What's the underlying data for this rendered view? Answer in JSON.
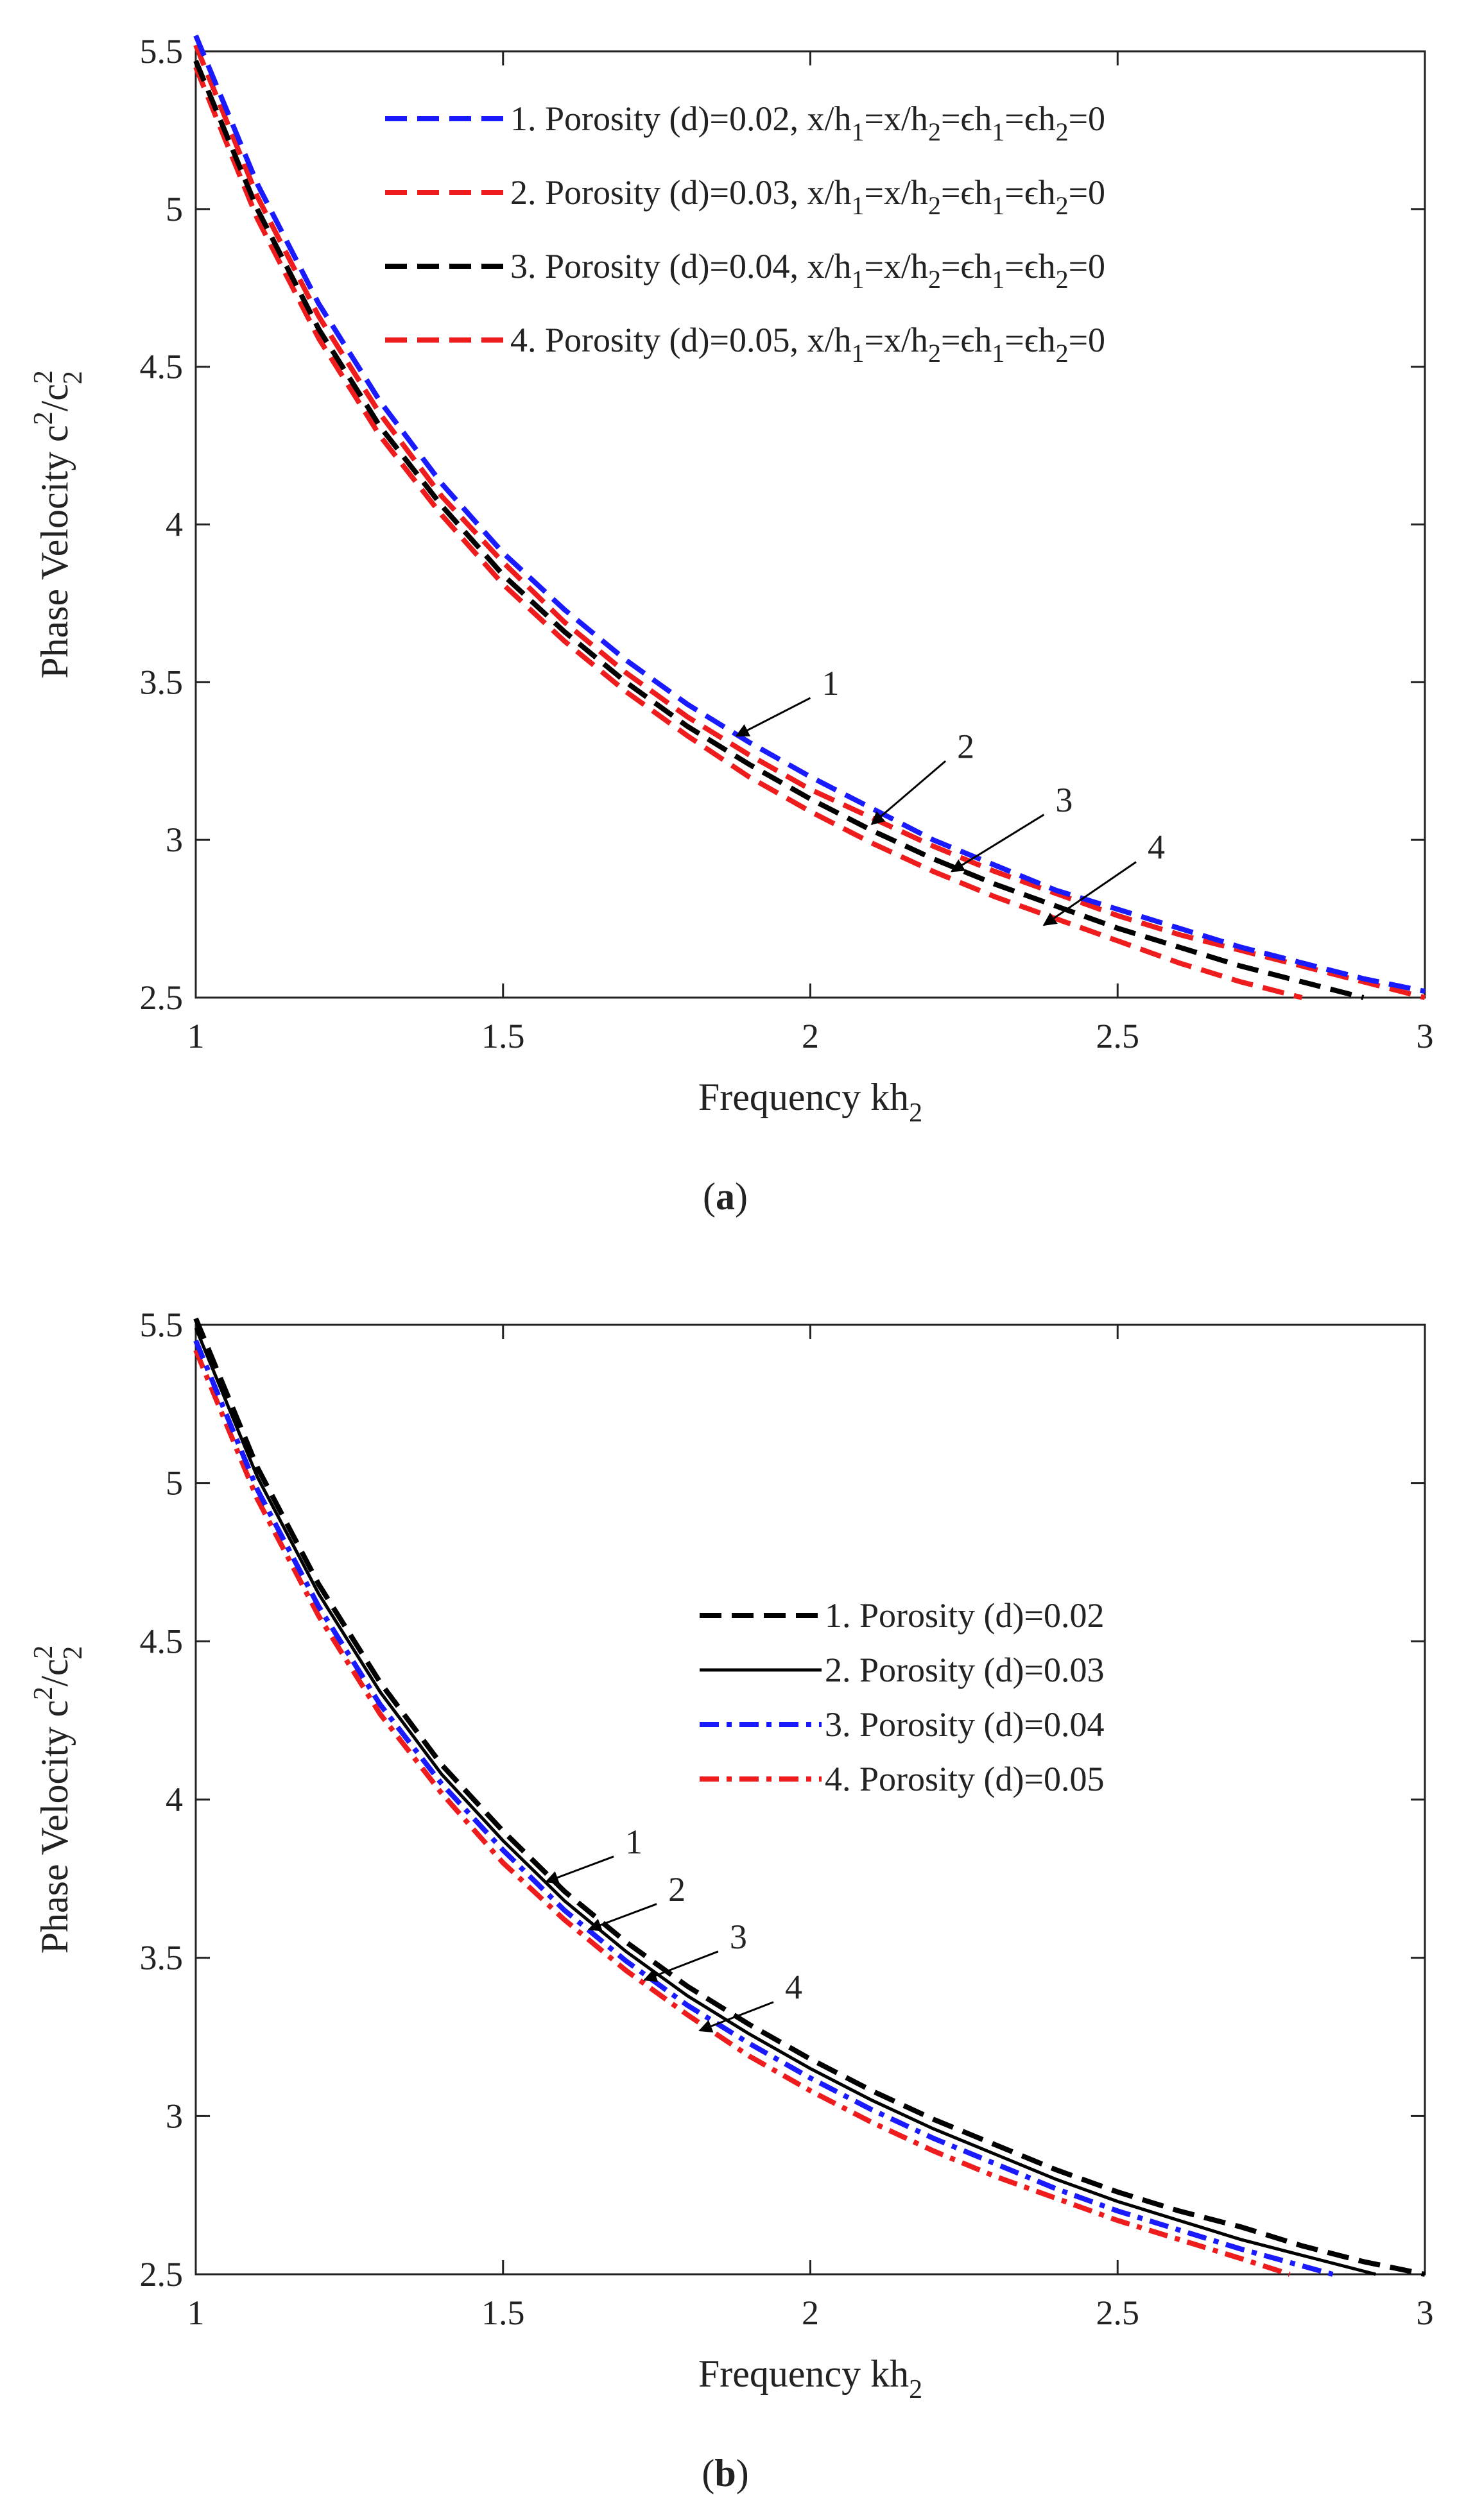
{
  "chart_data": [
    {
      "type": "line",
      "panel": "a",
      "caption": {
        "open": "(",
        "letter": "a",
        "close": ")"
      },
      "xlabel": {
        "main": "Frequency kh",
        "sub": "2"
      },
      "ylabel": {
        "main": "Phase Velocity c",
        "sup1": "2",
        "slash": "/c",
        "sup2": "2",
        "sub2": "2"
      },
      "xlim": [
        1,
        3
      ],
      "ylim": [
        2.5,
        5.5
      ],
      "xticks": [
        "1",
        "1.5",
        "2",
        "2.5",
        "3"
      ],
      "yticks": [
        "2.5",
        "3",
        "3.5",
        "4",
        "4.5",
        "5",
        "5.5"
      ],
      "series": [
        {
          "name": "1. Porosity (d)=0.02, x/h1=x/h2=ϵh1=ϵh2=0",
          "color": "#1a1aff",
          "style": "dashed",
          "x": [
            1.0,
            1.1,
            1.2,
            1.3,
            1.4,
            1.5,
            1.6,
            1.7,
            1.8,
            1.9,
            2.0,
            2.1,
            2.2,
            2.3,
            2.4,
            2.5,
            2.6,
            2.7,
            2.8,
            2.9,
            3.0
          ],
          "y": [
            5.55,
            5.08,
            4.7,
            4.39,
            4.13,
            3.91,
            3.73,
            3.57,
            3.43,
            3.31,
            3.2,
            3.1,
            3.0,
            2.92,
            2.84,
            2.78,
            2.72,
            2.66,
            2.61,
            2.56,
            2.52
          ]
        },
        {
          "name": "2. Porosity (d)=0.03, x/h1=x/h2=ϵh1=ϵh2=0",
          "color": "#ee1c1c",
          "style": "dashed",
          "x": [
            1.0,
            1.1,
            1.2,
            1.3,
            1.4,
            1.5,
            1.6,
            1.7,
            1.8,
            1.9,
            2.0,
            2.1,
            2.2,
            2.3,
            2.4,
            2.5,
            2.6,
            2.7,
            2.8,
            2.9,
            3.0
          ],
          "y": [
            5.52,
            5.04,
            4.66,
            4.35,
            4.09,
            3.88,
            3.69,
            3.53,
            3.39,
            3.27,
            3.16,
            3.07,
            2.98,
            2.9,
            2.83,
            2.76,
            2.7,
            2.65,
            2.6,
            2.55,
            2.5
          ]
        },
        {
          "name": "3. Porosity (d)=0.04, x/h1=x/h2=ϵh1=ϵh2=0",
          "color": "#000000",
          "style": "dashed",
          "x": [
            1.0,
            1.1,
            1.2,
            1.3,
            1.4,
            1.5,
            1.6,
            1.7,
            1.8,
            1.9,
            2.0,
            2.1,
            2.2,
            2.3,
            2.4,
            2.5,
            2.6,
            2.7,
            2.8,
            2.9
          ],
          "y": [
            5.47,
            5.0,
            4.62,
            4.31,
            4.06,
            3.84,
            3.66,
            3.5,
            3.36,
            3.24,
            3.13,
            3.03,
            2.94,
            2.86,
            2.79,
            2.72,
            2.66,
            2.6,
            2.55,
            2.5
          ]
        },
        {
          "name": "4. Porosity (d)=0.05, x/h1=x/h2=ϵh1=ϵh2=0",
          "color": "#ee1c1c",
          "style": "dashed",
          "x": [
            1.0,
            1.1,
            1.2,
            1.3,
            1.4,
            1.5,
            1.6,
            1.7,
            1.8,
            1.9,
            2.0,
            2.1,
            2.2,
            2.3,
            2.4,
            2.5,
            2.6,
            2.7,
            2.8
          ],
          "y": [
            5.45,
            4.97,
            4.59,
            4.28,
            4.03,
            3.81,
            3.63,
            3.47,
            3.33,
            3.2,
            3.09,
            2.99,
            2.9,
            2.82,
            2.75,
            2.68,
            2.61,
            2.55,
            2.5
          ]
        }
      ],
      "legend": {
        "placement": "top-right",
        "entries": [
          {
            "label": "1. Porosity (d)=0.02, x/h",
            "sub": [
              "1",
              "=x/h",
              "2",
              "=ϵh",
              "1",
              "=ϵh",
              "2",
              "=0"
            ]
          },
          {
            "label": "2. Porosity (d)=0.03, x/h",
            "sub": [
              "1",
              "=x/h",
              "2",
              "=ϵh",
              "1",
              "=ϵh",
              "2",
              "=0"
            ]
          },
          {
            "label": "3. Porosity (d)=0.04, x/h",
            "sub": [
              "1",
              "=x/h",
              "2",
              "=ϵh",
              "1",
              "=ϵh",
              "2",
              "=0"
            ]
          },
          {
            "label": "4. Porosity (d)=0.05, x/h",
            "sub": [
              "1",
              "=x/h",
              "2",
              "=ϵh",
              "1",
              "=ϵh",
              "2",
              "=0"
            ]
          }
        ]
      },
      "annotations": [
        {
          "text": "1",
          "point": [
            1.88,
            3.33
          ],
          "from": [
            2.0,
            3.45
          ]
        },
        {
          "text": "2",
          "point": [
            2.1,
            3.05
          ],
          "from": [
            2.22,
            3.25
          ]
        },
        {
          "text": "3",
          "point": [
            2.23,
            2.9
          ],
          "from": [
            2.38,
            3.08
          ]
        },
        {
          "text": "4",
          "point": [
            2.38,
            2.73
          ],
          "from": [
            2.53,
            2.93
          ]
        }
      ]
    },
    {
      "type": "line",
      "panel": "b",
      "caption": {
        "open": "(",
        "letter": "b",
        "close": ")"
      },
      "xlabel": {
        "main": "Frequency kh",
        "sub": "2"
      },
      "ylabel": {
        "main": "Phase Velocity c",
        "sup1": "2",
        "slash": "/c",
        "sup2": "2",
        "sub2": "2"
      },
      "xlim": [
        1,
        3
      ],
      "ylim": [
        2.5,
        5.5
      ],
      "xticks": [
        "1",
        "1.5",
        "2",
        "2.5",
        "3"
      ],
      "yticks": [
        "2.5",
        "3",
        "3.5",
        "4",
        "4.5",
        "5",
        "5.5"
      ],
      "series": [
        {
          "name": "1. Porosity (d)=0.02",
          "color": "#000000",
          "style": "dashed",
          "x": [
            1.0,
            1.1,
            1.2,
            1.3,
            1.4,
            1.5,
            1.6,
            1.7,
            1.8,
            1.9,
            2.0,
            2.1,
            2.2,
            2.3,
            2.4,
            2.5,
            2.6,
            2.7,
            2.8,
            2.9,
            3.0
          ],
          "y": [
            5.52,
            5.05,
            4.68,
            4.37,
            4.11,
            3.9,
            3.71,
            3.55,
            3.41,
            3.29,
            3.18,
            3.08,
            2.99,
            2.91,
            2.83,
            2.76,
            2.7,
            2.65,
            2.59,
            2.54,
            2.5
          ]
        },
        {
          "name": "2. Porosity (d)=0.03",
          "color": "#000000",
          "style": "solid",
          "x": [
            1.0,
            1.1,
            1.2,
            1.3,
            1.4,
            1.5,
            1.6,
            1.7,
            1.8,
            1.9,
            2.0,
            2.1,
            2.2,
            2.3,
            2.4,
            2.5,
            2.6,
            2.7,
            2.8,
            2.92
          ],
          "y": [
            5.49,
            5.02,
            4.65,
            4.34,
            4.08,
            3.87,
            3.68,
            3.52,
            3.38,
            3.26,
            3.15,
            3.05,
            2.96,
            2.88,
            2.8,
            2.73,
            2.67,
            2.61,
            2.56,
            2.5
          ]
        },
        {
          "name": "3. Porosity (d)=0.04",
          "color": "#1a1aff",
          "style": "dashdot",
          "x": [
            1.0,
            1.1,
            1.2,
            1.3,
            1.4,
            1.5,
            1.6,
            1.7,
            1.8,
            1.9,
            2.0,
            2.1,
            2.2,
            2.3,
            2.4,
            2.5,
            2.6,
            2.7,
            2.85
          ],
          "y": [
            5.45,
            4.98,
            4.61,
            4.3,
            4.05,
            3.84,
            3.65,
            3.49,
            3.35,
            3.23,
            3.12,
            3.02,
            2.93,
            2.85,
            2.77,
            2.7,
            2.64,
            2.58,
            2.5
          ]
        },
        {
          "name": "4. Porosity (d)=0.05",
          "color": "#ee1c1c",
          "style": "dashdot",
          "x": [
            1.0,
            1.1,
            1.2,
            1.3,
            1.4,
            1.5,
            1.6,
            1.7,
            1.8,
            1.9,
            2.0,
            2.1,
            2.2,
            2.3,
            2.4,
            2.5,
            2.6,
            2.7,
            2.78
          ],
          "y": [
            5.42,
            4.95,
            4.58,
            4.27,
            4.02,
            3.8,
            3.62,
            3.46,
            3.32,
            3.19,
            3.08,
            2.98,
            2.89,
            2.81,
            2.74,
            2.67,
            2.61,
            2.55,
            2.5
          ]
        }
      ],
      "legend": {
        "placement": "center-right",
        "entries": [
          {
            "label": "1. Porosity (d)=0.02"
          },
          {
            "label": "2. Porosity (d)=0.03"
          },
          {
            "label": "3. Porosity (d)=0.04"
          },
          {
            "label": "4. Porosity (d)=0.05"
          }
        ]
      },
      "annotations": [
        {
          "text": "1",
          "point": [
            1.57,
            3.74
          ],
          "from": [
            1.68,
            3.82
          ]
        },
        {
          "text": "2",
          "point": [
            1.64,
            3.59
          ],
          "from": [
            1.75,
            3.67
          ]
        },
        {
          "text": "3",
          "point": [
            1.73,
            3.43
          ],
          "from": [
            1.85,
            3.52
          ]
        },
        {
          "text": "4",
          "point": [
            1.82,
            3.27
          ],
          "from": [
            1.94,
            3.36
          ]
        }
      ]
    }
  ]
}
